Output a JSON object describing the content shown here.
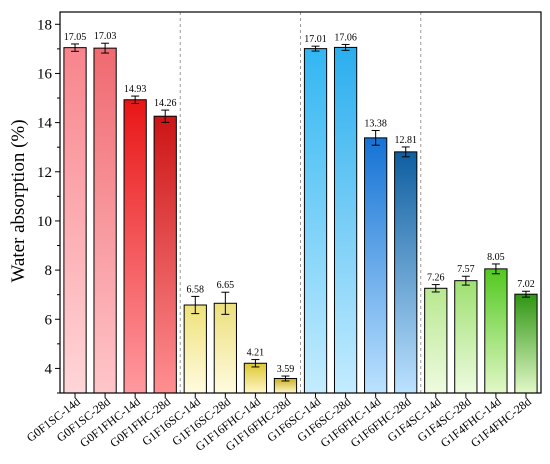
{
  "chart_data": {
    "type": "bar",
    "ylabel": "Water absorption (%)",
    "xlabel": "",
    "ylim": [
      3,
      18.5
    ],
    "yticks": [
      4,
      6,
      8,
      10,
      12,
      14,
      16,
      18
    ],
    "grid": false,
    "categories": [
      "G0F1SC-14d",
      "G0F1SC-28d",
      "G0F1FHC-14d",
      "G0F1FHC-28d",
      "G1F16SC-14d",
      "G1F16SC-28d",
      "G1F16FHC-14d",
      "G1F16FHC-28d",
      "G1F6SC-14d",
      "G1F6SC-28d",
      "G1F6FHC-14d",
      "G1F6FHC-28d",
      "G1F4SC-14d",
      "G1F4SC-28d",
      "G1F4FHC-14d",
      "G1F4FHC-28d"
    ],
    "values": [
      17.05,
      17.03,
      14.93,
      14.26,
      6.58,
      6.65,
      4.21,
      3.59,
      17.01,
      17.06,
      13.38,
      12.81,
      7.26,
      7.57,
      8.05,
      7.02
    ],
    "value_labels": [
      "17.05",
      "17.03",
      "14.93",
      "14.26",
      "6.58",
      "6.65",
      "4.21",
      "3.59",
      "17.01",
      "17.06",
      "13.38",
      "12.81",
      "7.26",
      "7.57",
      "8.05",
      "7.02"
    ],
    "errors": [
      0.15,
      0.2,
      0.15,
      0.25,
      0.35,
      0.45,
      0.15,
      0.1,
      0.1,
      0.12,
      0.3,
      0.2,
      0.15,
      0.18,
      0.2,
      0.12
    ],
    "groups": [
      {
        "bars": [
          0,
          1,
          2,
          3
        ],
        "colors": [
          [
            "#ffd6d8",
            "#f8848c"
          ],
          [
            "#ffc6ca",
            "#f06970"
          ],
          [
            "#ff9aa0",
            "#e81616"
          ],
          [
            "#ff8f92",
            "#cc1414"
          ]
        ]
      },
      {
        "bars": [
          4,
          5,
          6,
          7
        ],
        "colors": [
          [
            "#fffbe0",
            "#efe27a"
          ],
          [
            "#fffbe0",
            "#ece07c"
          ],
          [
            "#fff6c8",
            "#dcc830"
          ],
          [
            "#fff6c8",
            "#c9b024"
          ]
        ]
      },
      {
        "bars": [
          8,
          9,
          10,
          11
        ],
        "colors": [
          [
            "#c4ecff",
            "#32b6f2"
          ],
          [
            "#c4ecff",
            "#2aaeee"
          ],
          [
            "#bce2ff",
            "#1572d4"
          ],
          [
            "#bce2ff",
            "#0e5ea0"
          ]
        ]
      },
      {
        "bars": [
          12,
          13,
          14,
          15
        ],
        "colors": [
          [
            "#eefbe0",
            "#b8e890"
          ],
          [
            "#eefbe0",
            "#9ee070"
          ],
          [
            "#e2f8c8",
            "#52c81e"
          ],
          [
            "#e2f8c8",
            "#2e9612"
          ]
        ]
      }
    ],
    "separators_after_group": [
      0,
      1,
      2
    ]
  }
}
